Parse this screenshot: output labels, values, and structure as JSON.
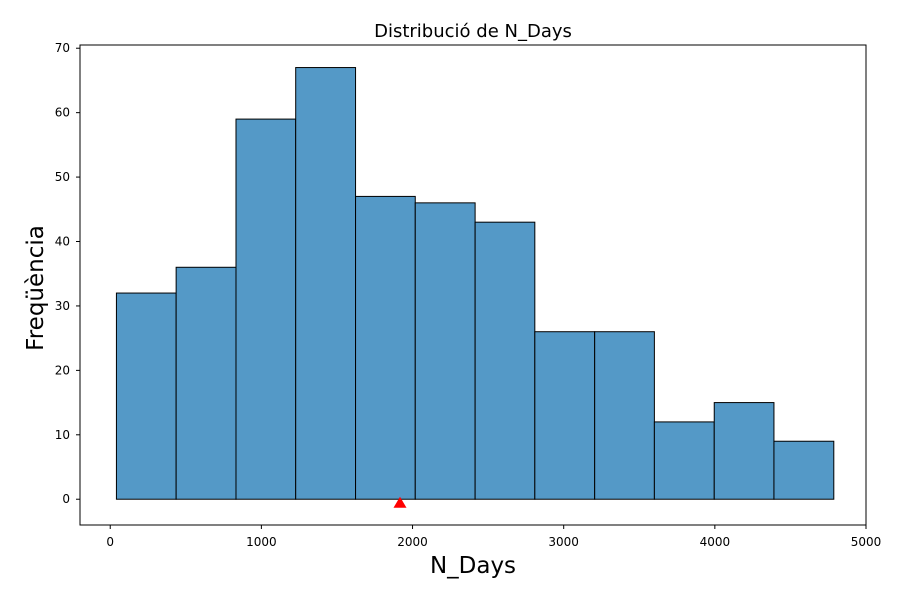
{
  "chart_data": {
    "type": "histogram",
    "title": "Distribució de N_Days",
    "xlabel": "N_Days",
    "ylabel": "Freqüència",
    "xlim": [
      -200,
      5000
    ],
    "ylim": [
      -4,
      70.5
    ],
    "xticks": [
      0,
      1000,
      2000,
      3000,
      4000,
      5000
    ],
    "yticks": [
      0,
      10,
      20,
      30,
      40,
      50,
      60,
      70
    ],
    "bin_edges": [
      41,
      436,
      832,
      1227,
      1623,
      2018,
      2414,
      2809,
      3205,
      3600,
      3996,
      4391,
      4787
    ],
    "counts": [
      32,
      36,
      59,
      67,
      47,
      46,
      43,
      26,
      26,
      12,
      15,
      9
    ],
    "bar_color": "#5499c7",
    "edge_color": "#000000",
    "marker": {
      "shape": "triangle",
      "x": 1917,
      "y": -0.7,
      "color": "#ff0000"
    },
    "grid": false
  }
}
